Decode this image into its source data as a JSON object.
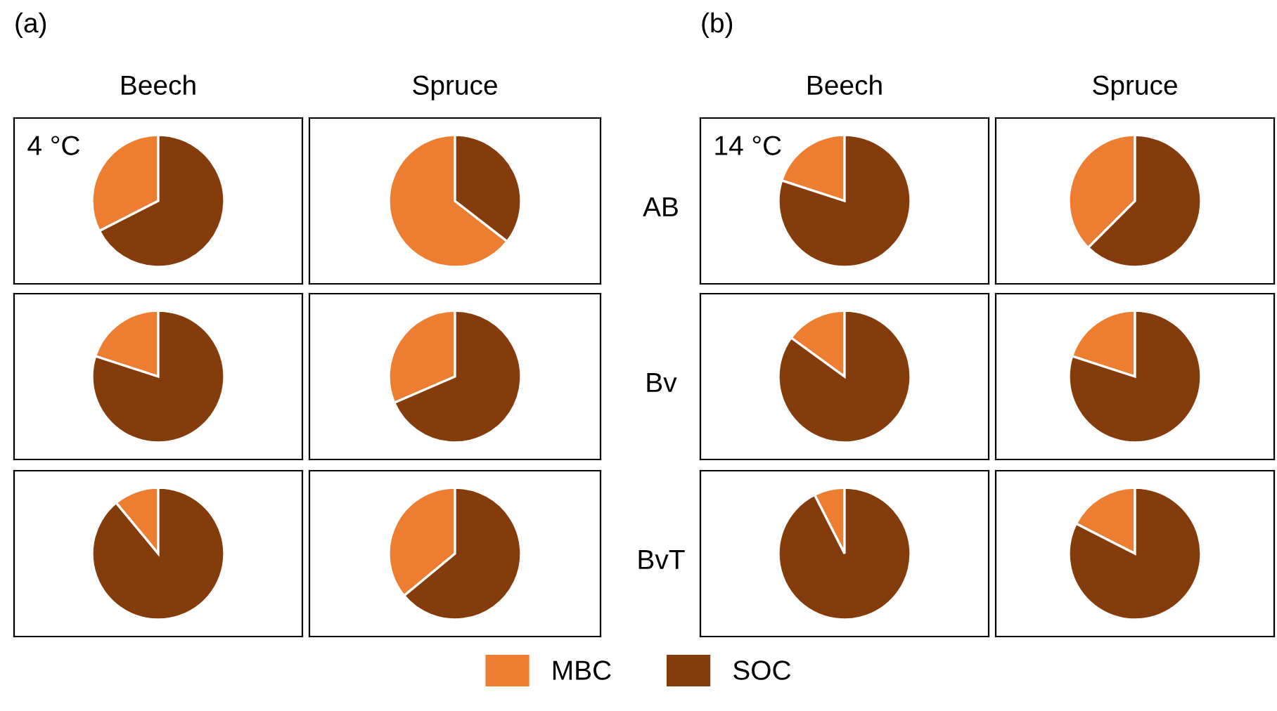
{
  "chart_data": [
    {
      "type": "pie",
      "title": "Beech",
      "annotations": [
        "(a)",
        "4 °C"
      ],
      "categories": [
        "MBC",
        "SOC"
      ],
      "values": [
        32.5,
        67.5
      ],
      "colors": [
        "#ed7d31",
        "#843c0c"
      ],
      "legend": "bottom"
    },
    {
      "type": "pie",
      "title": "Spruce",
      "annotations": [
        "AB"
      ],
      "categories": [
        null,
        null
      ],
      "values": [
        64.5,
        35.5
      ],
      "colors": [
        "#ed7d31",
        "#843c0c"
      ]
    },
    {
      "type": "pie",
      "title": "Beech",
      "annotations": [
        "(b)",
        "14 °C"
      ],
      "categories": [
        null,
        null
      ],
      "values": [
        20,
        80
      ],
      "colors": [
        "#ed7d31",
        "#843c0c"
      ]
    },
    {
      "type": "pie",
      "title": "Spruce",
      "categories": [
        null,
        null
      ],
      "values": [
        37.5,
        62.5
      ],
      "colors": [
        "#ed7d31",
        "#843c0c"
      ]
    },
    {
      "type": "pie",
      "categories": [
        null,
        null
      ],
      "values": [
        20,
        80
      ],
      "colors": [
        "#ed7d31",
        "#843c0c"
      ]
    },
    {
      "type": "pie",
      "annotations": [
        "Bv"
      ],
      "categories": [
        null,
        null
      ],
      "values": [
        31.5,
        68.5
      ],
      "colors": [
        "#ed7d31",
        "#843c0c"
      ]
    },
    {
      "type": "pie",
      "categories": [
        null,
        null
      ],
      "values": [
        15,
        85
      ],
      "colors": [
        "#ed7d31",
        "#843c0c"
      ]
    },
    {
      "type": "pie",
      "categories": [
        null,
        null
      ],
      "values": [
        20,
        80
      ],
      "colors": [
        "#ed7d31",
        "#843c0c"
      ]
    },
    {
      "type": "pie",
      "categories": [
        null,
        null
      ],
      "values": [
        11,
        89
      ],
      "colors": [
        "#ed7d31",
        "#843c0c"
      ]
    },
    {
      "type": "pie",
      "annotations": [
        "BvT"
      ],
      "categories": [
        null,
        null
      ],
      "values": [
        36,
        64
      ],
      "colors": [
        "#ed7d31",
        "#843c0c"
      ]
    },
    {
      "type": "pie",
      "categories": [
        null,
        null
      ],
      "values": [
        7.5,
        92.5
      ],
      "colors": [
        "#ed7d31",
        "#843c0c"
      ]
    },
    {
      "type": "pie",
      "categories": [
        null,
        null
      ],
      "values": [
        17.5,
        82.5
      ],
      "colors": [
        "#ed7d31",
        "#843c0c"
      ]
    }
  ]
}
